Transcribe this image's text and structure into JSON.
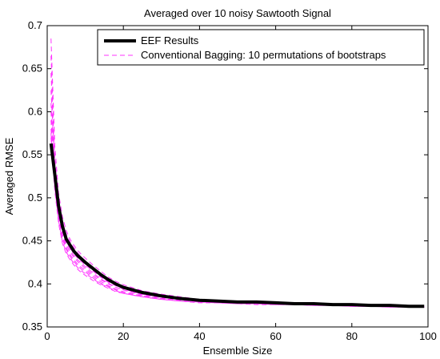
{
  "chart_data": {
    "type": "line",
    "title": "Averaged  over 10 noisy Sawtooth Signal",
    "xlabel": "Ensemble Size",
    "ylabel": "Averaged RMSE",
    "xlim": [
      0,
      100
    ],
    "ylim": [
      0.35,
      0.7
    ],
    "xticks": [
      0,
      20,
      40,
      60,
      80,
      100
    ],
    "yticks": [
      0.35,
      0.4,
      0.45,
      0.5,
      0.55,
      0.6,
      0.65,
      0.7
    ],
    "grid": false,
    "legend_position": "top-right",
    "legend": [
      "EEF Results",
      "Conventional Bagging: 10 permutations of bootstraps"
    ],
    "series": [
      {
        "name": "EEF Results",
        "style": "solid-thick",
        "color": "#000000",
        "x": [
          1,
          2,
          3,
          4,
          5,
          6,
          7,
          8,
          9,
          10,
          12,
          14,
          16,
          18,
          20,
          25,
          30,
          35,
          40,
          45,
          50,
          55,
          60,
          65,
          70,
          75,
          80,
          85,
          90,
          95,
          99
        ],
        "y": [
          0.563,
          0.527,
          0.49,
          0.467,
          0.452,
          0.445,
          0.438,
          0.433,
          0.429,
          0.425,
          0.418,
          0.411,
          0.405,
          0.4,
          0.396,
          0.39,
          0.386,
          0.383,
          0.381,
          0.38,
          0.379,
          0.379,
          0.378,
          0.377,
          0.377,
          0.376,
          0.376,
          0.375,
          0.375,
          0.374,
          0.374
        ]
      }
    ],
    "bagging_series": {
      "name": "Conventional Bagging: 10 permutations of bootstraps",
      "style": "dashed",
      "color": "#ff33ff",
      "x": [
        1,
        2,
        3,
        4,
        5,
        6,
        7,
        8,
        9,
        10,
        12,
        14,
        16,
        18,
        20,
        25,
        30,
        35,
        40,
        45,
        50,
        55,
        60,
        65,
        70,
        75,
        80,
        85,
        90,
        95,
        99
      ],
      "runs": [
        [
          0.685,
          0.56,
          0.505,
          0.478,
          0.462,
          0.452,
          0.445,
          0.439,
          0.434,
          0.43,
          0.422,
          0.415,
          0.408,
          0.403,
          0.399,
          0.392,
          0.388,
          0.385,
          0.382,
          0.381,
          0.38,
          0.379,
          0.378,
          0.378,
          0.377,
          0.376,
          0.376,
          0.375,
          0.375,
          0.374,
          0.374
        ],
        [
          0.665,
          0.545,
          0.498,
          0.472,
          0.458,
          0.449,
          0.442,
          0.436,
          0.431,
          0.427,
          0.419,
          0.412,
          0.406,
          0.401,
          0.397,
          0.391,
          0.387,
          0.384,
          0.381,
          0.38,
          0.379,
          0.379,
          0.378,
          0.377,
          0.377,
          0.376,
          0.375,
          0.375,
          0.374,
          0.374,
          0.374
        ],
        [
          0.645,
          0.54,
          0.495,
          0.47,
          0.455,
          0.446,
          0.439,
          0.433,
          0.428,
          0.424,
          0.416,
          0.409,
          0.403,
          0.398,
          0.395,
          0.389,
          0.385,
          0.383,
          0.381,
          0.38,
          0.379,
          0.378,
          0.378,
          0.377,
          0.376,
          0.376,
          0.375,
          0.375,
          0.374,
          0.374,
          0.373
        ],
        [
          0.625,
          0.535,
          0.49,
          0.465,
          0.45,
          0.442,
          0.435,
          0.43,
          0.426,
          0.422,
          0.415,
          0.408,
          0.402,
          0.398,
          0.394,
          0.388,
          0.385,
          0.382,
          0.38,
          0.379,
          0.379,
          0.378,
          0.377,
          0.377,
          0.376,
          0.376,
          0.375,
          0.375,
          0.374,
          0.374,
          0.373
        ],
        [
          0.61,
          0.53,
          0.487,
          0.462,
          0.448,
          0.44,
          0.433,
          0.428,
          0.424,
          0.42,
          0.413,
          0.406,
          0.401,
          0.396,
          0.393,
          0.388,
          0.384,
          0.382,
          0.38,
          0.379,
          0.378,
          0.378,
          0.377,
          0.377,
          0.376,
          0.375,
          0.375,
          0.375,
          0.374,
          0.374,
          0.374
        ],
        [
          0.6,
          0.525,
          0.483,
          0.458,
          0.445,
          0.437,
          0.431,
          0.426,
          0.422,
          0.418,
          0.411,
          0.405,
          0.4,
          0.396,
          0.393,
          0.387,
          0.384,
          0.382,
          0.38,
          0.379,
          0.378,
          0.377,
          0.377,
          0.376,
          0.376,
          0.375,
          0.375,
          0.374,
          0.374,
          0.374,
          0.373
        ],
        [
          0.59,
          0.52,
          0.48,
          0.455,
          0.442,
          0.434,
          0.428,
          0.423,
          0.419,
          0.416,
          0.409,
          0.403,
          0.398,
          0.394,
          0.391,
          0.386,
          0.383,
          0.381,
          0.379,
          0.378,
          0.378,
          0.377,
          0.377,
          0.376,
          0.376,
          0.375,
          0.375,
          0.374,
          0.374,
          0.373,
          0.373
        ],
        [
          0.58,
          0.515,
          0.477,
          0.452,
          0.44,
          0.432,
          0.426,
          0.421,
          0.417,
          0.414,
          0.407,
          0.401,
          0.397,
          0.393,
          0.39,
          0.386,
          0.383,
          0.381,
          0.379,
          0.378,
          0.378,
          0.377,
          0.376,
          0.376,
          0.375,
          0.375,
          0.374,
          0.374,
          0.374,
          0.373,
          0.373
        ],
        [
          0.575,
          0.512,
          0.473,
          0.449,
          0.437,
          0.43,
          0.424,
          0.419,
          0.415,
          0.412,
          0.406,
          0.4,
          0.396,
          0.392,
          0.389,
          0.385,
          0.382,
          0.38,
          0.379,
          0.378,
          0.377,
          0.377,
          0.376,
          0.376,
          0.375,
          0.375,
          0.374,
          0.374,
          0.373,
          0.373,
          0.373
        ],
        [
          0.57,
          0.508,
          0.47,
          0.447,
          0.435,
          0.428,
          0.422,
          0.417,
          0.413,
          0.41,
          0.404,
          0.399,
          0.395,
          0.391,
          0.389,
          0.385,
          0.382,
          0.38,
          0.378,
          0.378,
          0.377,
          0.376,
          0.376,
          0.376,
          0.375,
          0.375,
          0.374,
          0.374,
          0.373,
          0.373,
          0.373
        ]
      ]
    }
  }
}
